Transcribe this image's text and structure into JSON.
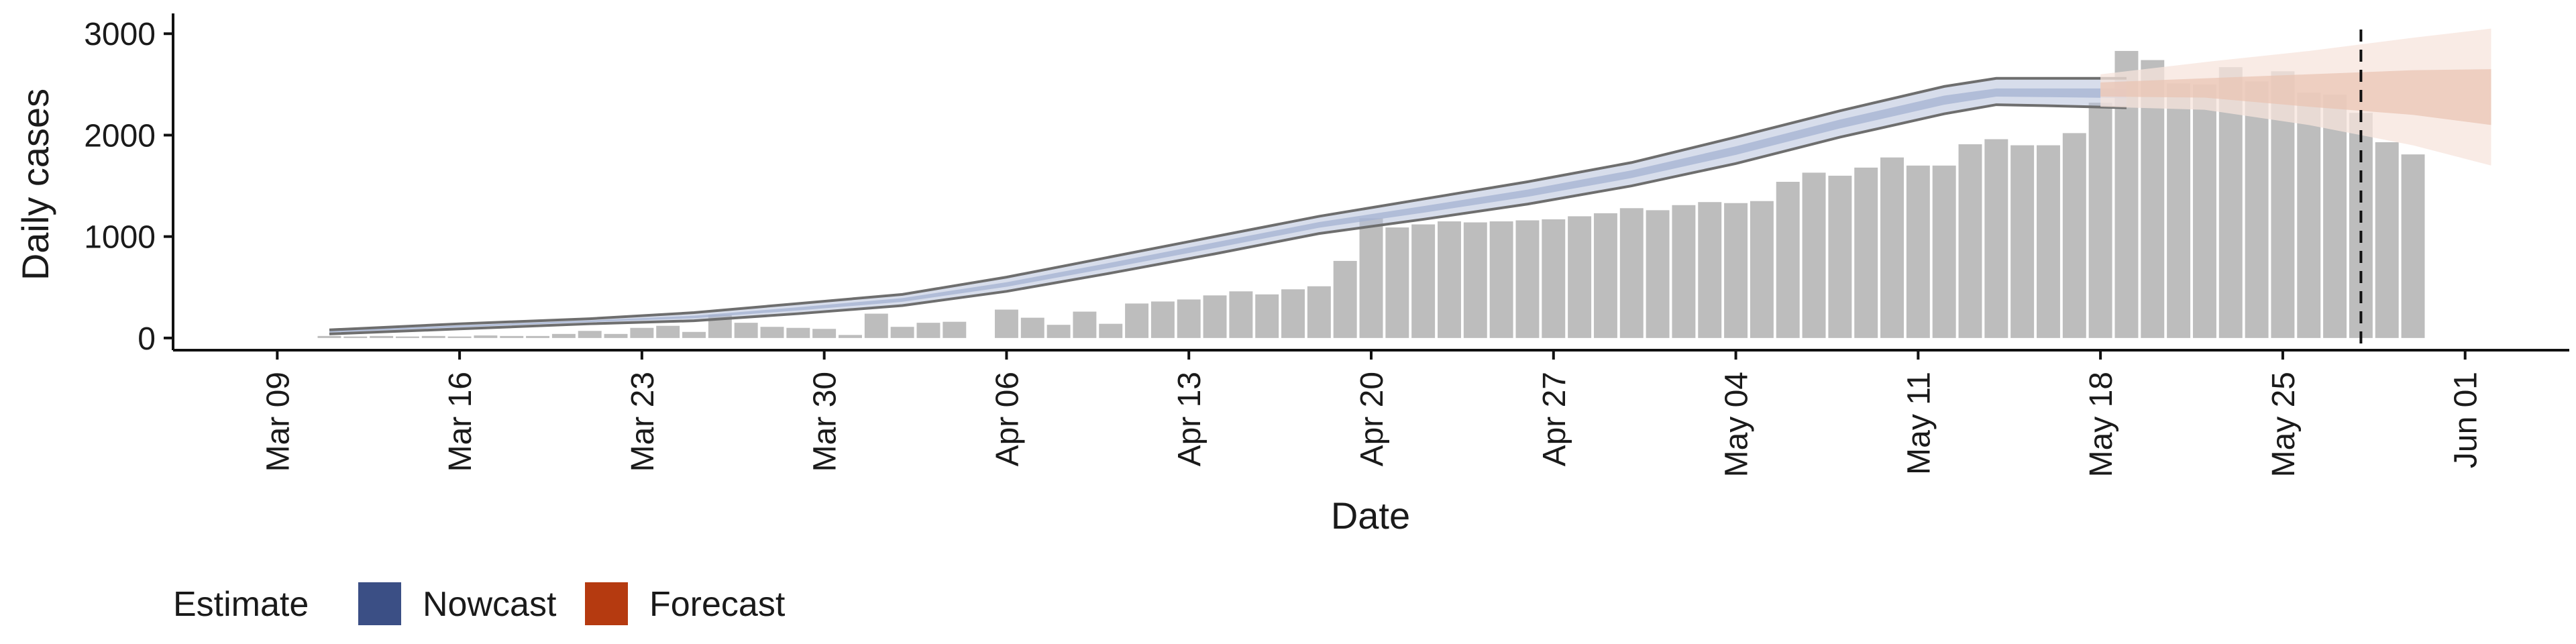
{
  "chart_data": {
    "type": "bar",
    "xlabel": "Date",
    "ylabel": "Daily cases",
    "x_ticks": [
      "Mar 09",
      "Mar 16",
      "Mar 23",
      "Mar 30",
      "Apr 06",
      "Apr 13",
      "Apr 20",
      "Apr 27",
      "May 04",
      "May 11",
      "May 18",
      "May 25",
      "Jun 01"
    ],
    "y_ticks": [
      0,
      1000,
      2000,
      3000
    ],
    "ylim": [
      -120,
      3200
    ],
    "xlim": [
      "2020-03-05",
      "2020-06-05"
    ],
    "vline_date": "2020-05-28",
    "grid": false,
    "legend": {
      "title": "Estimate",
      "placement": "bottom-left",
      "items": [
        {
          "label": "Nowcast",
          "color": "#3b4f85"
        },
        {
          "label": "Forecast",
          "color": "#b53a10"
        }
      ]
    },
    "colors": {
      "bars": "#bdbdbd",
      "nowcast_band": "#b7c1da",
      "nowcast_inner": "#a4b1d1",
      "nowcast_outline": "#6e6e6e",
      "forecast_band": "#f7e4dc",
      "forecast_inner": "#eac3b2"
    },
    "bars": {
      "start_date": "2020-03-11",
      "values": [
        20,
        15,
        20,
        15,
        20,
        15,
        25,
        20,
        20,
        40,
        70,
        40,
        100,
        120,
        60,
        230,
        150,
        110,
        100,
        90,
        30,
        240,
        110,
        150,
        160,
        0,
        280,
        200,
        130,
        260,
        140,
        340,
        360,
        380,
        420,
        460,
        430,
        480,
        510,
        760,
        1180,
        1090,
        1120,
        1150,
        1140,
        1150,
        1160,
        1170,
        1200,
        1230,
        1280,
        1260,
        1310,
        1340,
        1330,
        1350,
        1540,
        1630,
        1600,
        1680,
        1780,
        1700,
        1700,
        1910,
        1960,
        1900,
        1900,
        2020,
        2320,
        2830,
        2740,
        2510,
        2500,
        2670,
        2530,
        2630,
        2420,
        2400,
        2220,
        1930,
        1810
      ]
    },
    "nowcast": {
      "dates": [
        "2020-03-11",
        "2020-03-16",
        "2020-03-21",
        "2020-03-25",
        "2020-03-29",
        "2020-04-02",
        "2020-04-06",
        "2020-04-10",
        "2020-04-14",
        "2020-04-18",
        "2020-04-22",
        "2020-04-26",
        "2020-04-30",
        "2020-05-04",
        "2020-05-08",
        "2020-05-12",
        "2020-05-14",
        "2020-05-16",
        "2020-05-19"
      ],
      "lower": [
        40,
        90,
        140,
        170,
        240,
        320,
        460,
        640,
        830,
        1030,
        1170,
        1320,
        1500,
        1720,
        1980,
        2210,
        2300,
        2290,
        2270
      ],
      "inner_lower": [
        55,
        107,
        157,
        195,
        272,
        357,
        505,
        692,
        887,
        1087,
        1235,
        1392,
        1577,
        1805,
        2067,
        2300,
        2380,
        2375,
        2365
      ],
      "inner_upper": [
        70,
        123,
        173,
        220,
        303,
        393,
        550,
        743,
        943,
        1143,
        1300,
        1463,
        1653,
        1890,
        2153,
        2390,
        2460,
        2460,
        2460
      ],
      "upper": [
        80,
        140,
        190,
        250,
        340,
        430,
        600,
        800,
        1000,
        1200,
        1370,
        1540,
        1730,
        1980,
        2240,
        2480,
        2560,
        2560,
        2560
      ]
    },
    "forecast": {
      "dates": [
        "2020-05-18",
        "2020-05-22",
        "2020-05-26",
        "2020-05-30",
        "2020-06-02"
      ],
      "lower": [
        2280,
        2250,
        2100,
        1900,
        1700
      ],
      "inner_lower": [
        2380,
        2370,
        2280,
        2200,
        2100
      ],
      "inner_upper": [
        2520,
        2560,
        2600,
        2640,
        2650
      ],
      "upper": [
        2600,
        2720,
        2830,
        2960,
        3050
      ]
    }
  }
}
